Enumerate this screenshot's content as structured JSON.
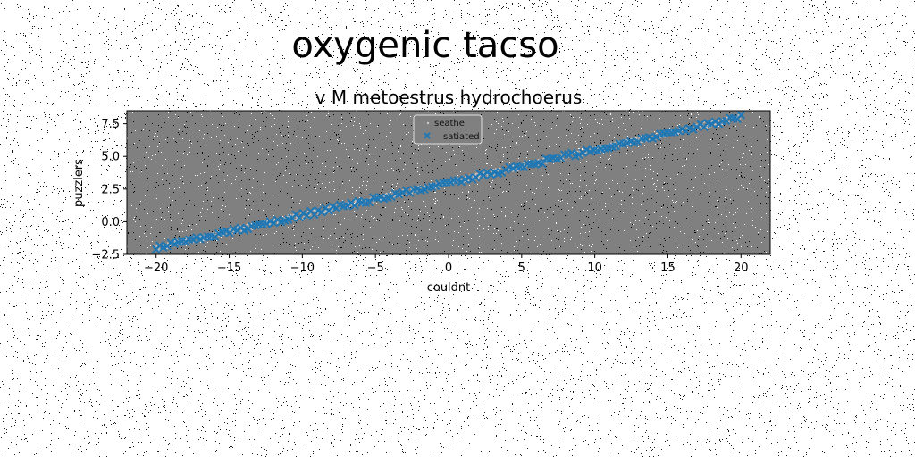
{
  "figure": {
    "suptitle": "oxygenic tacso"
  },
  "chart_data": {
    "type": "scatter",
    "title": "v M metoestrus hydrochoerus",
    "xlabel": "couldnt",
    "ylabel": "puzzlers",
    "xlim": [
      -22,
      22
    ],
    "ylim": [
      -2.5,
      8.5
    ],
    "xticks": [
      -20,
      -15,
      -10,
      -5,
      0,
      5,
      10,
      15,
      20
    ],
    "xtick_labels": [
      "−20",
      "−15",
      "−10",
      "−5",
      "0",
      "5",
      "10",
      "15",
      "20"
    ],
    "yticks": [
      -2.5,
      0.0,
      2.5,
      5.0,
      7.5
    ],
    "ytick_labels": [
      "−2.5",
      "0.0",
      "2.5",
      "5.0",
      "7.5"
    ],
    "grid": false,
    "axes_background": "#808080",
    "legend": {
      "position": "upper center"
    },
    "series": [
      {
        "name": "seathe",
        "marker": "point",
        "color": "#c8c8c8",
        "trend": {
          "x_start": -20,
          "x_end": 20,
          "y_start": -2.0,
          "y_end": 8.0
        },
        "n_points": 1500
      },
      {
        "name": "satiated",
        "marker": "x",
        "color": "#1f77b4",
        "trend": {
          "x_start": -20,
          "x_end": 20,
          "y_start": -2.0,
          "y_end": 8.0
        },
        "n_points": 160
      }
    ]
  }
}
